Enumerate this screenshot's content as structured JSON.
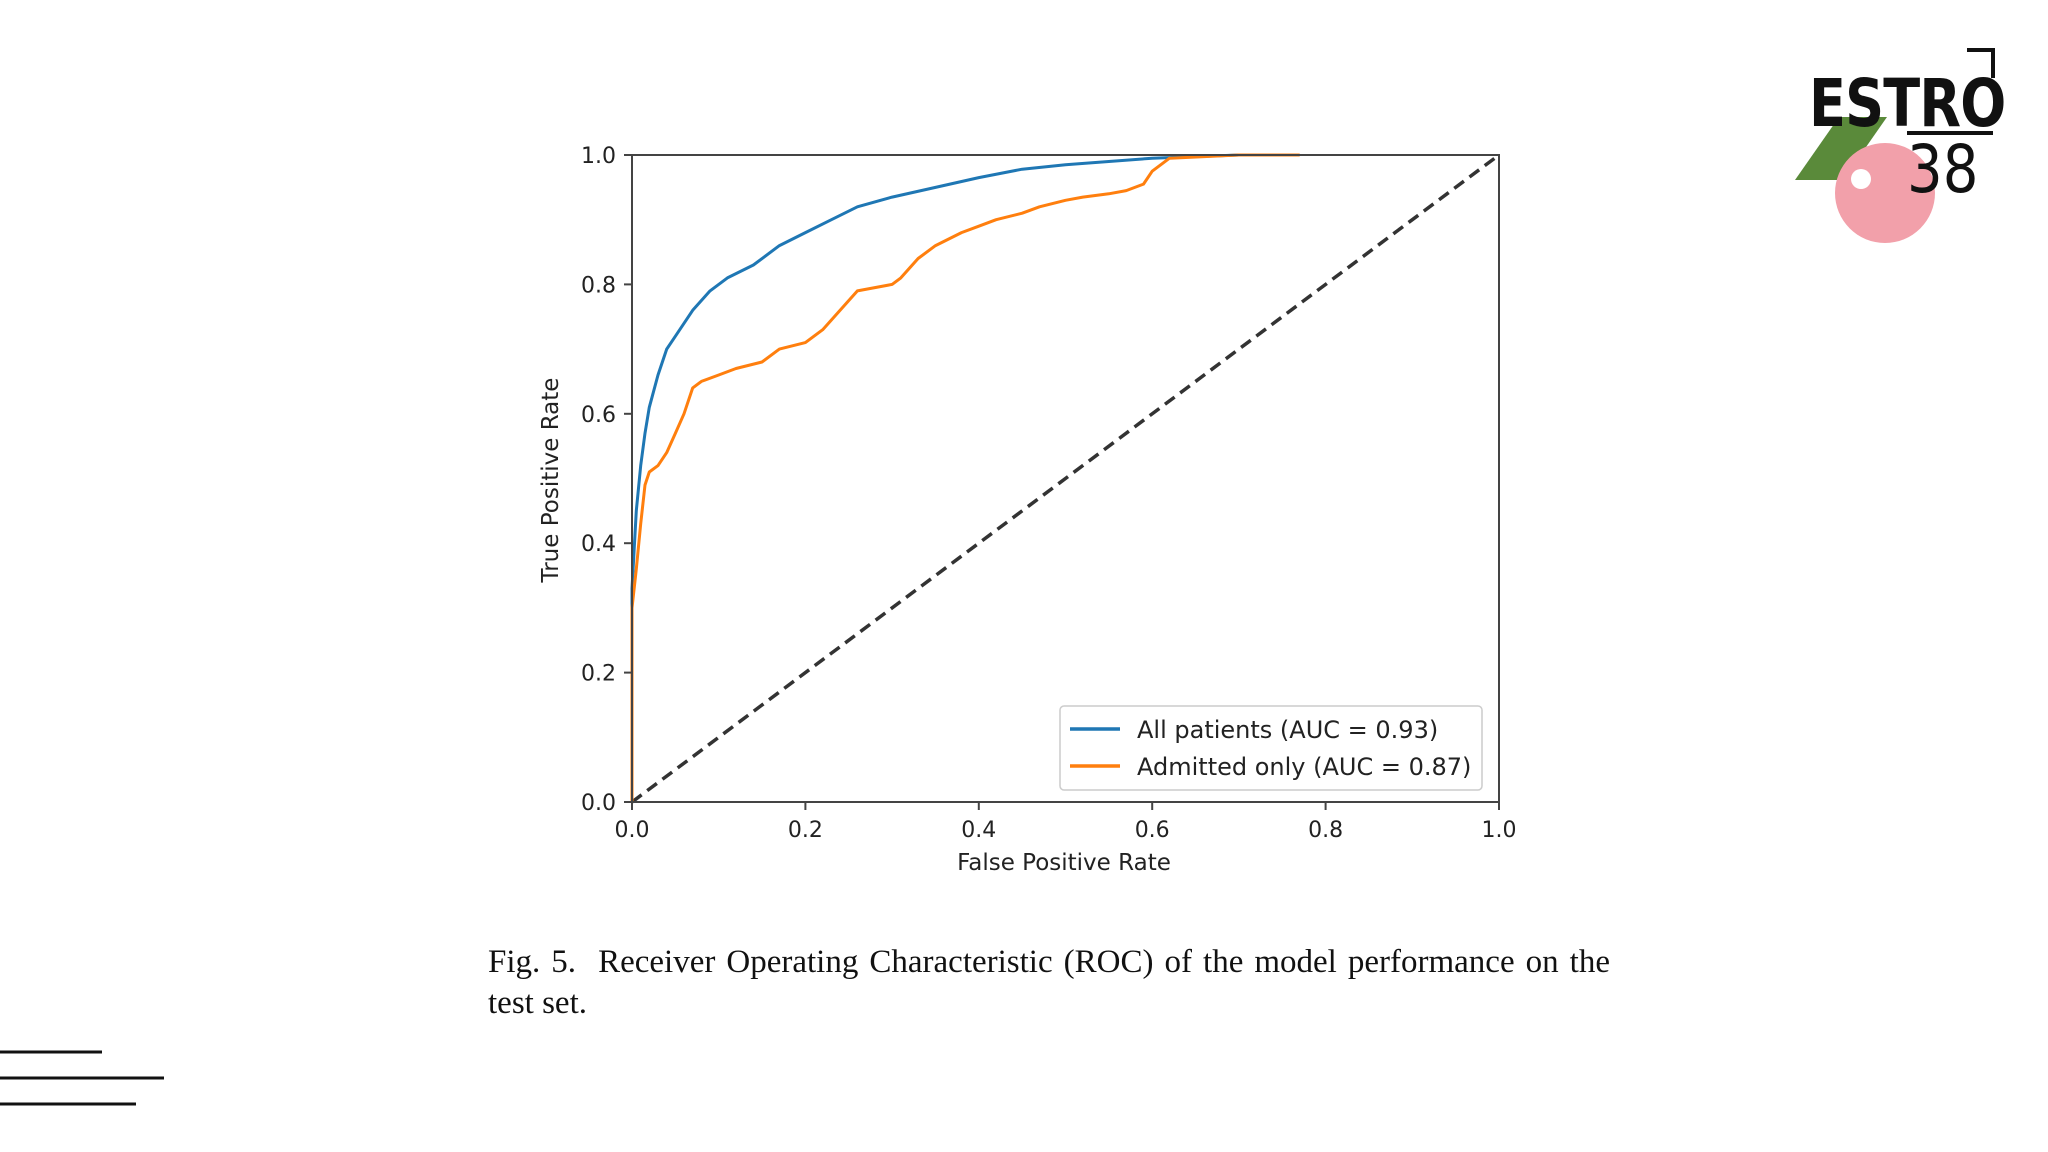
{
  "chart_data": {
    "type": "line",
    "xlabel": "False Positive Rate",
    "ylabel": "True Positive Rate",
    "xlim": [
      0.0,
      1.0
    ],
    "ylim": [
      0.0,
      1.0
    ],
    "xticks": [
      "0.0",
      "0.2",
      "0.4",
      "0.6",
      "0.8",
      "1.0"
    ],
    "yticks": [
      "0.0",
      "0.2",
      "0.4",
      "0.6",
      "0.8",
      "1.0"
    ],
    "grid": false,
    "legend_position": "bottom-right",
    "series": [
      {
        "name": "All patients (AUC = 0.93)",
        "color": "#1f77b4",
        "x": [
          0.0,
          0.0,
          0.005,
          0.01,
          0.015,
          0.02,
          0.03,
          0.04,
          0.05,
          0.07,
          0.09,
          0.11,
          0.14,
          0.17,
          0.2,
          0.23,
          0.26,
          0.3,
          0.35,
          0.4,
          0.45,
          0.5,
          0.55,
          0.6,
          0.7,
          0.77
        ],
        "y": [
          0.0,
          0.33,
          0.45,
          0.52,
          0.57,
          0.61,
          0.66,
          0.7,
          0.72,
          0.76,
          0.79,
          0.81,
          0.83,
          0.86,
          0.88,
          0.9,
          0.92,
          0.935,
          0.95,
          0.965,
          0.978,
          0.985,
          0.99,
          0.995,
          1.0,
          1.0
        ]
      },
      {
        "name": "Admitted only (AUC = 0.87)",
        "color": "#ff7f0e",
        "x": [
          0.0,
          0.0,
          0.005,
          0.01,
          0.015,
          0.02,
          0.03,
          0.04,
          0.05,
          0.06,
          0.07,
          0.08,
          0.1,
          0.12,
          0.15,
          0.17,
          0.2,
          0.22,
          0.24,
          0.26,
          0.3,
          0.31,
          0.33,
          0.35,
          0.38,
          0.4,
          0.42,
          0.45,
          0.47,
          0.5,
          0.52,
          0.55,
          0.57,
          0.59,
          0.6,
          0.62,
          0.7,
          0.77
        ],
        "y": [
          0.0,
          0.3,
          0.36,
          0.43,
          0.49,
          0.51,
          0.52,
          0.54,
          0.57,
          0.6,
          0.64,
          0.65,
          0.66,
          0.67,
          0.68,
          0.7,
          0.71,
          0.73,
          0.76,
          0.79,
          0.8,
          0.81,
          0.84,
          0.86,
          0.88,
          0.89,
          0.9,
          0.91,
          0.92,
          0.93,
          0.935,
          0.94,
          0.945,
          0.955,
          0.975,
          0.995,
          1.0,
          1.0
        ]
      },
      {
        "color": "#333333",
        "style": "dashed",
        "x": [
          0.0,
          1.0
        ],
        "y": [
          0.0,
          1.0
        ]
      }
    ]
  },
  "caption": {
    "line1": "Fig. 5.  Receiver Operating Characteristic (ROC) of the model performance",
    "line2": "on the test set."
  },
  "logo": {
    "word": "ESTRO",
    "number": "38",
    "colors": {
      "green": "#5a8a3a",
      "pink": "#f2a0aa",
      "dark": "#111111"
    }
  }
}
